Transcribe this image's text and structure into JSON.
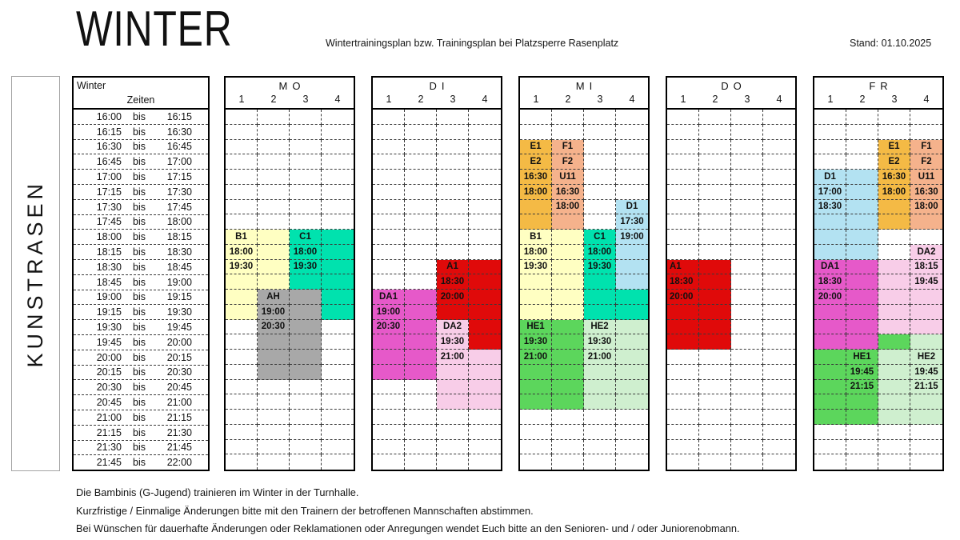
{
  "header": {
    "title": "WINTER",
    "subtitle": "Wintertrainingsplan bzw. Trainingsplan bei Platzsperre Rasenplatz",
    "stand": "Stand: 01.10.2025"
  },
  "side_label": "KUNSTRASEN",
  "time_table": {
    "title": "Winter",
    "subtitle": "Zeiten",
    "separator": "bis",
    "slots": [
      [
        "16:00",
        "16:15"
      ],
      [
        "16:15",
        "16:30"
      ],
      [
        "16:30",
        "16:45"
      ],
      [
        "16:45",
        "17:00"
      ],
      [
        "17:00",
        "17:15"
      ],
      [
        "17:15",
        "17:30"
      ],
      [
        "17:30",
        "17:45"
      ],
      [
        "17:45",
        "18:00"
      ],
      [
        "18:00",
        "18:15"
      ],
      [
        "18:15",
        "18:30"
      ],
      [
        "18:30",
        "18:45"
      ],
      [
        "18:45",
        "19:00"
      ],
      [
        "19:00",
        "19:15"
      ],
      [
        "19:15",
        "19:30"
      ],
      [
        "19:30",
        "19:45"
      ],
      [
        "19:45",
        "20:00"
      ],
      [
        "20:00",
        "20:15"
      ],
      [
        "20:15",
        "20:30"
      ],
      [
        "20:30",
        "20:45"
      ],
      [
        "20:45",
        "21:00"
      ],
      [
        "21:00",
        "21:15"
      ],
      [
        "21:15",
        "21:30"
      ],
      [
        "21:30",
        "21:45"
      ],
      [
        "21:45",
        "22:00"
      ]
    ]
  },
  "palette": {
    "yellow": "#FFFFC2",
    "turquoise": "#00E2AE",
    "gray": "#A8A8A8",
    "red": "#E00A0A",
    "magenta": "#E659C9",
    "lightpink": "#F8CDE8",
    "orange": "#F4BA45",
    "salmon": "#F5B28C",
    "lightblue": "#B3E2F2",
    "green": "#5CD65C",
    "lightgreen": "#CFEFCF"
  },
  "days": [
    {
      "name": "MO",
      "subcols": [
        "1",
        "2",
        "3",
        "4"
      ],
      "blocks": [
        {
          "team": "B1",
          "start": "18:00",
          "end": "19:30",
          "color": "yellow",
          "fills": [
            [
              9,
              14,
              1,
              1
            ],
            [
              9,
              12,
              2,
              2
            ]
          ],
          "labels": [
            [
              9,
              1,
              "B1"
            ],
            [
              10,
              1,
              "18:00"
            ],
            [
              11,
              1,
              "19:30"
            ]
          ]
        },
        {
          "team": "C1",
          "start": "18:00",
          "end": "19:30",
          "color": "turquoise",
          "fills": [
            [
              9,
              12,
              3,
              3
            ],
            [
              9,
              14,
              4,
              4
            ]
          ],
          "labels": [
            [
              9,
              3,
              "C1"
            ],
            [
              10,
              3,
              "18:00"
            ],
            [
              11,
              3,
              "19:30"
            ]
          ]
        },
        {
          "team": "AH",
          "start": "19:00",
          "end": "20:30",
          "color": "gray",
          "fills": [
            [
              13,
              18,
              2,
              3
            ]
          ],
          "labels": [
            [
              13,
              2,
              "AH"
            ],
            [
              14,
              2,
              "19:00"
            ],
            [
              15,
              2,
              "20:30"
            ]
          ]
        }
      ]
    },
    {
      "name": "DI",
      "subcols": [
        "1",
        "2",
        "3",
        "4"
      ],
      "blocks": [
        {
          "team": "A1",
          "start": "18:30",
          "end": "20:00",
          "color": "red",
          "fills": [
            [
              11,
              14,
              3,
              3
            ],
            [
              11,
              16,
              4,
              4
            ]
          ],
          "labels": [
            [
              11,
              3,
              "A1"
            ],
            [
              12,
              3,
              "18:30"
            ],
            [
              13,
              3,
              "20:00"
            ]
          ]
        },
        {
          "team": "DA1",
          "start": "19:00",
          "end": "20:30",
          "color": "magenta",
          "fills": [
            [
              13,
              18,
              1,
              2
            ]
          ],
          "labels": [
            [
              13,
              1,
              "DA1"
            ],
            [
              14,
              1,
              "19:00"
            ],
            [
              15,
              1,
              "20:30"
            ]
          ]
        },
        {
          "team": "DA2",
          "start": "19:30",
          "end": "21:00",
          "color": "lightpink",
          "fills": [
            [
              15,
              20,
              3,
              3
            ],
            [
              17,
              20,
              4,
              4
            ]
          ],
          "labels": [
            [
              15,
              3,
              "DA2"
            ],
            [
              16,
              3,
              "19:30"
            ],
            [
              17,
              3,
              "21:00"
            ]
          ]
        }
      ]
    },
    {
      "name": "MI",
      "subcols": [
        "1",
        "2",
        "3",
        "4"
      ],
      "blocks": [
        {
          "team": "E1/E2",
          "start": "16:30",
          "end": "18:00",
          "color": "orange",
          "fills": [
            [
              3,
              8,
              1,
              1
            ]
          ],
          "labels": [
            [
              3,
              1,
              "E1"
            ],
            [
              4,
              1,
              "E2"
            ],
            [
              5,
              1,
              "16:30"
            ],
            [
              6,
              1,
              "18:00"
            ]
          ]
        },
        {
          "team": "F1/F2/U11",
          "start": "16:30",
          "end": "18:00",
          "color": "salmon",
          "fills": [
            [
              3,
              8,
              2,
              2
            ]
          ],
          "labels": [
            [
              3,
              2,
              "F1"
            ],
            [
              4,
              2,
              "F2"
            ],
            [
              5,
              2,
              "U11"
            ],
            [
              6,
              2,
              "16:30"
            ],
            [
              7,
              2,
              "18:00"
            ]
          ]
        },
        {
          "team": "D1",
          "start": "17:30",
          "end": "19:00",
          "color": "lightblue",
          "fills": [
            [
              7,
              12,
              4,
              4
            ]
          ],
          "labels": [
            [
              7,
              4,
              "D1"
            ],
            [
              8,
              4,
              "17:30"
            ],
            [
              9,
              4,
              "19:00"
            ]
          ]
        },
        {
          "team": "B1",
          "start": "18:00",
          "end": "19:30",
          "color": "yellow",
          "fills": [
            [
              9,
              14,
              1,
              2
            ]
          ],
          "labels": [
            [
              9,
              1,
              "B1"
            ],
            [
              10,
              1,
              "18:00"
            ],
            [
              11,
              1,
              "19:30"
            ]
          ]
        },
        {
          "team": "C1",
          "start": "18:00",
          "end": "19:30",
          "color": "turquoise",
          "fills": [
            [
              9,
              14,
              3,
              3
            ],
            [
              13,
              14,
              4,
              4
            ]
          ],
          "labels": [
            [
              9,
              3,
              "C1"
            ],
            [
              10,
              3,
              "18:00"
            ],
            [
              11,
              3,
              "19:30"
            ]
          ]
        },
        {
          "team": "HE1",
          "start": "19:30",
          "end": "21:00",
          "color": "green",
          "fills": [
            [
              15,
              20,
              1,
              2
            ]
          ],
          "labels": [
            [
              15,
              1,
              "HE1"
            ],
            [
              16,
              1,
              "19:30"
            ],
            [
              17,
              1,
              "21:00"
            ]
          ]
        },
        {
          "team": "HE2",
          "start": "19:30",
          "end": "21:00",
          "color": "lightgreen",
          "fills": [
            [
              15,
              20,
              3,
              4
            ]
          ],
          "labels": [
            [
              15,
              3,
              "HE2"
            ],
            [
              16,
              3,
              "19:30"
            ],
            [
              17,
              3,
              "21:00"
            ]
          ]
        }
      ]
    },
    {
      "name": "DO",
      "subcols": [
        "1",
        "2",
        "3",
        "4"
      ],
      "blocks": [
        {
          "team": "A1",
          "start": "18:30",
          "end": "20:00",
          "color": "red",
          "fills": [
            [
              11,
              16,
              1,
              2
            ]
          ],
          "labels": [
            [
              11,
              1,
              "A1",
              "l"
            ],
            [
              12,
              1,
              "18:30",
              "l"
            ],
            [
              13,
              1,
              "20:00",
              "l"
            ]
          ]
        }
      ]
    },
    {
      "name": "FR",
      "subcols": [
        "1",
        "2",
        "3",
        "4"
      ],
      "blocks": [
        {
          "team": "E1/E2",
          "start": "16:30",
          "end": "18:00",
          "color": "orange",
          "fills": [
            [
              3,
              8,
              3,
              3
            ]
          ],
          "labels": [
            [
              3,
              3,
              "E1"
            ],
            [
              4,
              3,
              "E2"
            ],
            [
              5,
              3,
              "16:30"
            ],
            [
              6,
              3,
              "18:00"
            ]
          ]
        },
        {
          "team": "F1/F2/U11",
          "start": "16:30",
          "end": "18:00",
          "color": "salmon",
          "fills": [
            [
              3,
              8,
              4,
              4
            ]
          ],
          "labels": [
            [
              3,
              4,
              "F1"
            ],
            [
              4,
              4,
              "F2"
            ],
            [
              5,
              4,
              "U11"
            ],
            [
              6,
              4,
              "16:30"
            ],
            [
              7,
              4,
              "18:00"
            ]
          ]
        },
        {
          "team": "D1",
          "start": "17:00",
          "end": "18:30",
          "color": "lightblue",
          "fills": [
            [
              5,
              10,
              1,
              2
            ]
          ],
          "labels": [
            [
              5,
              1,
              "D1"
            ],
            [
              6,
              1,
              "17:00"
            ],
            [
              7,
              1,
              "18:30"
            ]
          ]
        },
        {
          "team": "DA2",
          "start": "18:15",
          "end": "19:45",
          "color": "lightpink",
          "fills": [
            [
              10,
              15,
              4,
              4
            ],
            [
              11,
              15,
              3,
              3
            ]
          ],
          "labels": [
            [
              10,
              4,
              "DA2"
            ],
            [
              11,
              4,
              "18:15"
            ],
            [
              12,
              4,
              "19:45"
            ]
          ]
        },
        {
          "team": "DA1",
          "start": "18:30",
          "end": "20:00",
          "color": "magenta",
          "fills": [
            [
              11,
              16,
              1,
              2
            ]
          ],
          "labels": [
            [
              11,
              1,
              "DA1"
            ],
            [
              12,
              1,
              "18:30"
            ],
            [
              13,
              1,
              "20:00"
            ]
          ]
        },
        {
          "team": "HE1",
          "start": "19:45",
          "end": "21:15",
          "color": "green",
          "fills": [
            [
              16,
              16,
              3,
              3
            ],
            [
              17,
              21,
              1,
              2
            ]
          ],
          "labels": [
            [
              17,
              2,
              "HE1"
            ],
            [
              18,
              2,
              "19:45"
            ],
            [
              19,
              2,
              "21:15"
            ]
          ]
        },
        {
          "team": "HE2",
          "start": "19:45",
          "end": "21:15",
          "color": "lightgreen",
          "fills": [
            [
              16,
              16,
              4,
              4
            ],
            [
              17,
              21,
              3,
              4
            ]
          ],
          "labels": [
            [
              17,
              4,
              "HE2"
            ],
            [
              18,
              4,
              "19:45"
            ],
            [
              19,
              4,
              "21:15"
            ]
          ]
        }
      ]
    }
  ],
  "footer": {
    "notes": [
      "Die Bambinis (G-Jugend) trainieren im Winter in der Turnhalle.",
      "Kurzfristige / Einmalige Änderungen bitte mit den Trainern der betroffenen Mannschaften abstimmen.",
      "Bei Wünschen für dauerhafte Änderungen oder Reklamationen oder Anregungen wendet Euch bitte an den Senioren- und / oder Juniorenobmann."
    ]
  }
}
